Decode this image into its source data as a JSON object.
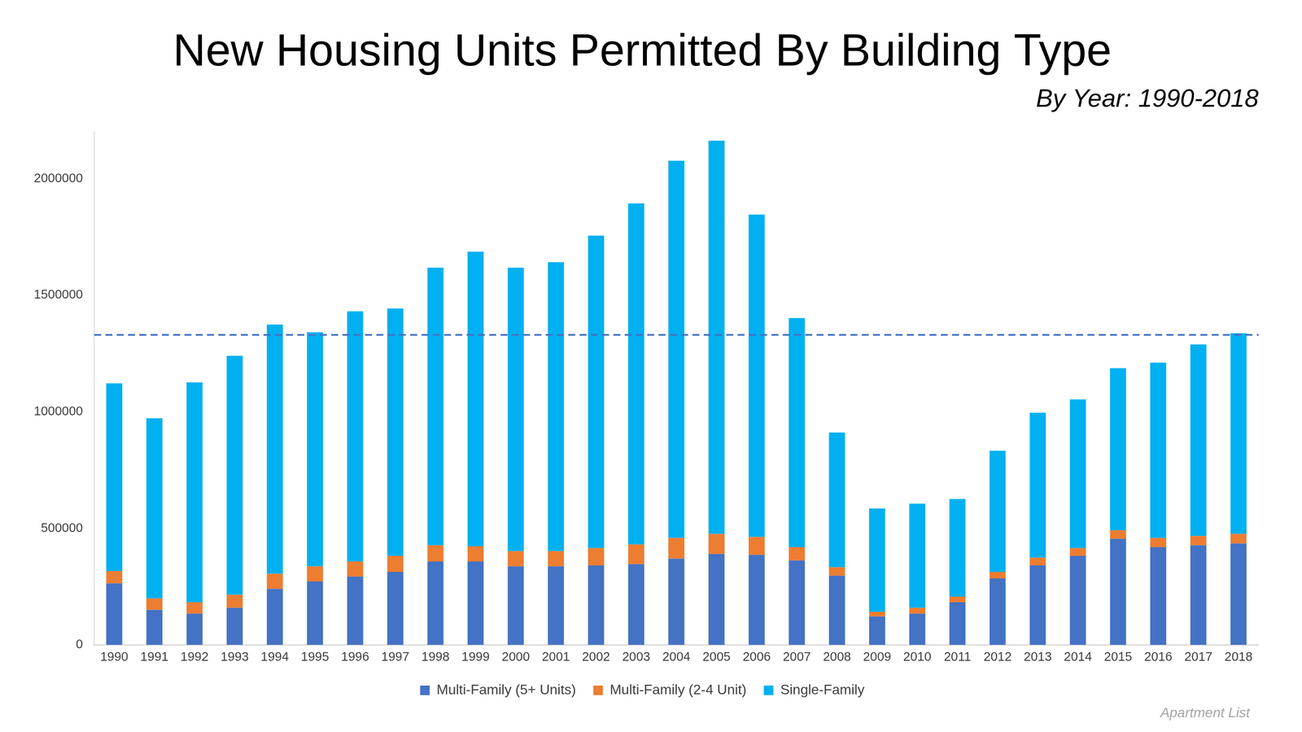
{
  "chart_data": {
    "type": "bar",
    "title": "New Housing Units Permitted By Building Type",
    "subtitle": "By Year: 1990-2018",
    "source": "Apartment List",
    "categories": [
      "1990",
      "1991",
      "1992",
      "1993",
      "1994",
      "1995",
      "1996",
      "1997",
      "1998",
      "1999",
      "2000",
      "2001",
      "2002",
      "2003",
      "2004",
      "2005",
      "2006",
      "2007",
      "2008",
      "2009",
      "2010",
      "2011",
      "2012",
      "2013",
      "2014",
      "2015",
      "2016",
      "2017",
      "2018"
    ],
    "series": [
      {
        "name": "Multi-Family (5+ Units)",
        "color": "#4472c4",
        "values": [
          264000,
          150000,
          134000,
          159000,
          240000,
          272000,
          293000,
          313000,
          358000,
          358000,
          337000,
          337000,
          341000,
          346000,
          370000,
          390000,
          386000,
          362000,
          297000,
          122000,
          134000,
          183000,
          285000,
          341000,
          382000,
          455000,
          419000,
          427000,
          435000
        ]
      },
      {
        "name": "Multi-Family (2-4 Unit)",
        "color": "#ed7d31",
        "values": [
          53000,
          49000,
          49000,
          56000,
          65000,
          65000,
          65000,
          69000,
          69000,
          65000,
          65000,
          65000,
          74000,
          85000,
          89000,
          86000,
          77000,
          57000,
          36000,
          20000,
          25000,
          24000,
          28000,
          33000,
          33000,
          37000,
          40000,
          40000,
          41000
        ]
      },
      {
        "name": "Single-Family",
        "color": "#00b0f0",
        "values": [
          805000,
          773000,
          943000,
          1025000,
          1069000,
          1004000,
          1073000,
          1061000,
          1191000,
          1264000,
          1216000,
          1240000,
          1341000,
          1463000,
          1618000,
          1687000,
          1383000,
          983000,
          578000,
          443000,
          447000,
          419000,
          520000,
          622000,
          638000,
          695000,
          752000,
          822000,
          861000
        ]
      }
    ],
    "reference_line": 1330000,
    "reference_line_color": "#4472c4",
    "reference_line_style": "dashed",
    "stacked": true,
    "ylim": [
      0,
      2200000
    ],
    "yticks": [
      0,
      500000,
      1000000,
      1500000,
      2000000
    ],
    "grid": false,
    "legend": "bottom"
  }
}
